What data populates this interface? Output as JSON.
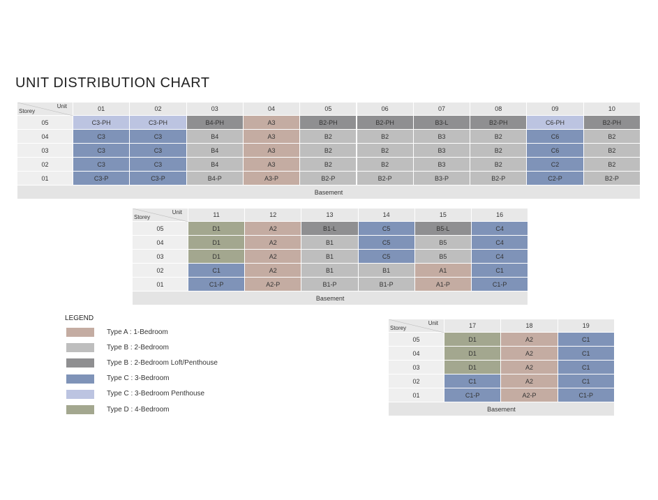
{
  "title": "UNIT DISTRIBUTION CHART",
  "tables": [
    {
      "unit_label": "Unit",
      "storey_label": "Storey",
      "units": [
        "01",
        "02",
        "03",
        "04",
        "05",
        "06",
        "07",
        "08",
        "09",
        "10"
      ],
      "rows": [
        {
          "storey": "05",
          "cells": [
            "C3-PH",
            "C3-PH",
            "B4-PH",
            "A3",
            "B2-PH",
            "B2-PH",
            "B3-L",
            "B2-PH",
            "C6-PH",
            "B2-PH"
          ]
        },
        {
          "storey": "04",
          "cells": [
            "C3",
            "C3",
            "B4",
            "A3",
            "B2",
            "B2",
            "B3",
            "B2",
            "C6",
            "B2"
          ]
        },
        {
          "storey": "03",
          "cells": [
            "C3",
            "C3",
            "B4",
            "A3",
            "B2",
            "B2",
            "B3",
            "B2",
            "C6",
            "B2"
          ]
        },
        {
          "storey": "02",
          "cells": [
            "C3",
            "C3",
            "B4",
            "A3",
            "B2",
            "B2",
            "B3",
            "B2",
            "C2",
            "B2"
          ]
        },
        {
          "storey": "01",
          "cells": [
            "C3-P",
            "C3-P",
            "B4-P",
            "A3-P",
            "B2-P",
            "B2-P",
            "B3-P",
            "B2-P",
            "C2-P",
            "B2-P"
          ]
        }
      ],
      "basement": "Basement"
    },
    {
      "unit_label": "Unit",
      "storey_label": "Storey",
      "units": [
        "11",
        "12",
        "13",
        "14",
        "15",
        "16"
      ],
      "rows": [
        {
          "storey": "05",
          "cells": [
            "D1",
            "A2",
            "B1-L",
            "C5",
            "B5-L",
            "C4"
          ]
        },
        {
          "storey": "04",
          "cells": [
            "D1",
            "A2",
            "B1",
            "C5",
            "B5",
            "C4"
          ]
        },
        {
          "storey": "03",
          "cells": [
            "D1",
            "A2",
            "B1",
            "C5",
            "B5",
            "C4"
          ]
        },
        {
          "storey": "02",
          "cells": [
            "C1",
            "A2",
            "B1",
            "B1",
            "A1",
            "C1"
          ]
        },
        {
          "storey": "01",
          "cells": [
            "C1-P",
            "A2-P",
            "B1-P",
            "B1-P",
            "A1-P",
            "C1-P"
          ]
        }
      ],
      "basement": "Basement"
    },
    {
      "unit_label": "Unit",
      "storey_label": "Storey",
      "units": [
        "17",
        "18",
        "19"
      ],
      "rows": [
        {
          "storey": "05",
          "cells": [
            "D1",
            "A2",
            "C1"
          ]
        },
        {
          "storey": "04",
          "cells": [
            "D1",
            "A2",
            "C1"
          ]
        },
        {
          "storey": "03",
          "cells": [
            "D1",
            "A2",
            "C1"
          ]
        },
        {
          "storey": "02",
          "cells": [
            "C1",
            "A2",
            "C1"
          ]
        },
        {
          "storey": "01",
          "cells": [
            "C1-P",
            "A2-P",
            "C1-P"
          ]
        }
      ],
      "basement": "Basement"
    }
  ],
  "legend": {
    "title": "LEGEND",
    "items": [
      {
        "label": "Type A : 1-Bedroom",
        "color": "#c4aca2"
      },
      {
        "label": "Type B : 2-Bedroom",
        "color": "#bebebe"
      },
      {
        "label": "Type B : 2-Bedroom Loft/Penthouse",
        "color": "#8f8f91"
      },
      {
        "label": "Type C : 3-Bedroom",
        "color": "#7f93b8"
      },
      {
        "label": "Type C : 3-Bedroom Penthouse",
        "color": "#bcc4e1"
      },
      {
        "label": "Type D : 4-Bedroom",
        "color": "#a3a78f"
      }
    ]
  }
}
